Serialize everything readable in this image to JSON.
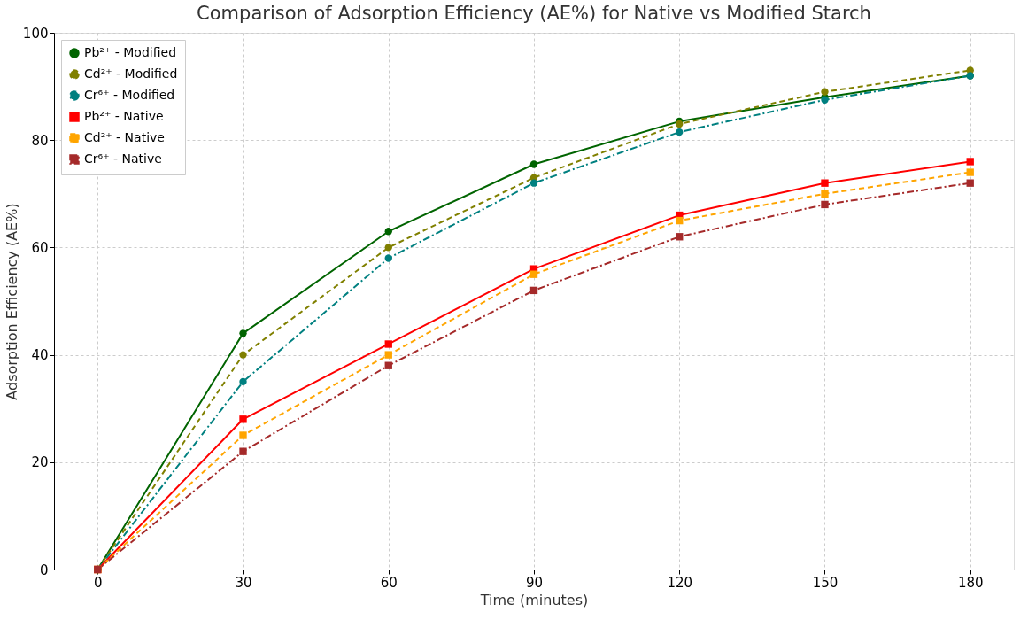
{
  "chart_data": {
    "type": "line",
    "title": "Comparison of Adsorption Efficiency (AE%) for Native vs Modified Starch",
    "xlabel": "Time (minutes)",
    "ylabel": "Adsorption Efficiency (AE%)",
    "x": [
      0,
      30,
      60,
      90,
      120,
      150,
      180
    ],
    "xlim": [
      -9,
      189
    ],
    "xticks": [
      0,
      30,
      60,
      90,
      120,
      150,
      180
    ],
    "ylim": [
      0,
      100
    ],
    "yticks": [
      0,
      20,
      40,
      60,
      80,
      100
    ],
    "grid": true,
    "legend": "top left",
    "series": [
      {
        "name": "Pb²⁺ - Modified",
        "color": "#006400",
        "marker": "circle",
        "line_style": "solid",
        "values": [
          0,
          44,
          63,
          75.5,
          83.5,
          88,
          92
        ]
      },
      {
        "name": "Cd²⁺ - Modified",
        "color": "#808000",
        "marker": "circle",
        "line_style": "dashed",
        "values": [
          0,
          40,
          60,
          73,
          83,
          89,
          93
        ]
      },
      {
        "name": "Cr⁶⁺ - Modified",
        "color": "#008080",
        "marker": "circle",
        "line_style": "dashdot",
        "values": [
          0,
          35,
          58,
          72,
          81.5,
          87.5,
          92
        ]
      },
      {
        "name": "Pb²⁺ - Native",
        "color": "#ff0000",
        "marker": "square",
        "line_style": "solid",
        "values": [
          0,
          28,
          42,
          56,
          66,
          72,
          76
        ]
      },
      {
        "name": "Cd²⁺ - Native",
        "color": "#ffa500",
        "marker": "square",
        "line_style": "dashed",
        "values": [
          0,
          25,
          40,
          55,
          65,
          70,
          74
        ]
      },
      {
        "name": "Cr⁶⁺ - Native",
        "color": "#a52a2a",
        "marker": "square",
        "line_style": "dashdot",
        "values": [
          0,
          22,
          38,
          52,
          62,
          68,
          72
        ]
      }
    ]
  }
}
